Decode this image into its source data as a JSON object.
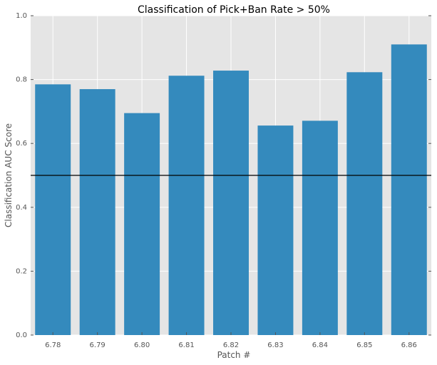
{
  "chart_data": {
    "type": "bar",
    "title": "Classification of Pick+Ban Rate > 50%",
    "xlabel": "Patch #",
    "ylabel": "Classification AUC Score",
    "categories": [
      "6.78",
      "6.79",
      "6.80",
      "6.81",
      "6.82",
      "6.83",
      "6.84",
      "6.85",
      "6.86"
    ],
    "values": [
      0.785,
      0.77,
      0.695,
      0.812,
      0.828,
      0.656,
      0.671,
      0.823,
      0.91
    ],
    "ylim": [
      0,
      1.0
    ],
    "yticks": [
      "0.0",
      "0.2",
      "0.4",
      "0.6",
      "0.8",
      "1.0"
    ],
    "reference_line": 0.5,
    "grid": true,
    "bar_color": "#348ABD",
    "background_color": "#E5E5E5",
    "reference_line_color": "#000000"
  }
}
